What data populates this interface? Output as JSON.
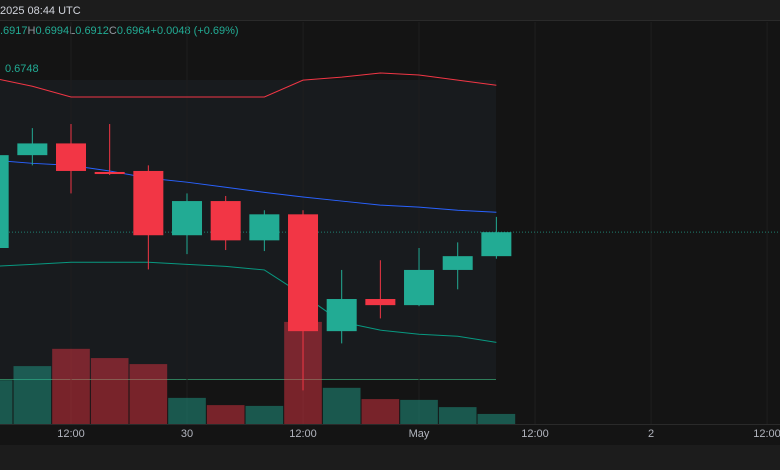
{
  "chart_data": {
    "type": "candlestick",
    "header": "2025 08:44 UTC",
    "legend_line": [
      ".6917",
      "H",
      "0.6994",
      "L",
      "0.6912",
      "C",
      "0.6964",
      "+0.0048 (+0.69%)"
    ],
    "indicator_value": "0.6748",
    "x": [
      4,
      8,
      12,
      16,
      20,
      24,
      28,
      32,
      36,
      40,
      44,
      48,
      52,
      56
    ],
    "open": [
      0.6933,
      0.7115,
      0.7138,
      0.7082,
      0.7084,
      0.6958,
      0.7025,
      0.6948,
      0.6999,
      0.677,
      0.6833,
      0.6821,
      0.689,
      0.6917
    ],
    "high": [
      0.7125,
      0.7168,
      0.7176,
      0.7176,
      0.7095,
      0.704,
      0.7035,
      0.7007,
      0.7007,
      0.689,
      0.6909,
      0.6933,
      0.6944,
      0.6994
    ],
    "low": [
      0.6933,
      0.7095,
      0.704,
      0.7076,
      0.6891,
      0.6921,
      0.6929,
      0.6927,
      0.6654,
      0.6746,
      0.6795,
      0.6819,
      0.6852,
      0.6912
    ],
    "close": [
      0.7115,
      0.7138,
      0.7084,
      0.7078,
      0.6958,
      0.7025,
      0.6948,
      0.6999,
      0.677,
      0.6833,
      0.6821,
      0.689,
      0.6917,
      0.6964
    ],
    "up_color": "#22ab94",
    "down_color": "#f23645",
    "upper_band": {
      "color": "#f23645",
      "values": [
        0.7266,
        0.725,
        0.7229,
        0.7229,
        0.7229,
        0.7229,
        0.7229,
        0.7229,
        0.7262,
        0.7268,
        0.7276,
        0.7272,
        0.7262,
        0.7252
      ]
    },
    "middle_band": {
      "color": "#2962ff",
      "values": [
        0.7105,
        0.7099,
        0.7095,
        0.7084,
        0.707,
        0.7062,
        0.7052,
        0.7042,
        0.7033,
        0.7025,
        0.7017,
        0.7013,
        0.7007,
        0.7003
      ]
    },
    "lower_band": {
      "color": "#089981",
      "values": [
        0.6897,
        0.6901,
        0.6905,
        0.6905,
        0.6905,
        0.6901,
        0.6897,
        0.689,
        0.6841,
        0.6788,
        0.6772,
        0.6764,
        0.676,
        0.6748
      ]
    },
    "volume": {
      "axis": "y2",
      "values": [
        109,
        144,
        187,
        164,
        149,
        65,
        47,
        45,
        254,
        90,
        62,
        60,
        42,
        25
      ]
    },
    "xlim": [
      4.655,
      85.34
    ],
    "xticks": [
      {
        "value": 12,
        "label": "12:00"
      },
      {
        "value": 24,
        "label": "30"
      },
      {
        "value": 36,
        "label": "12:00"
      },
      {
        "value": 48,
        "label": "May"
      },
      {
        "value": 60,
        "label": "12:00"
      },
      {
        "value": 72,
        "label": "2"
      },
      {
        "value": 84,
        "label": "12:00"
      }
    ],
    "ylim": [
      0.6588,
      0.7376
    ],
    "y2lim": [
      0,
      1000
    ],
    "grid": true
  }
}
